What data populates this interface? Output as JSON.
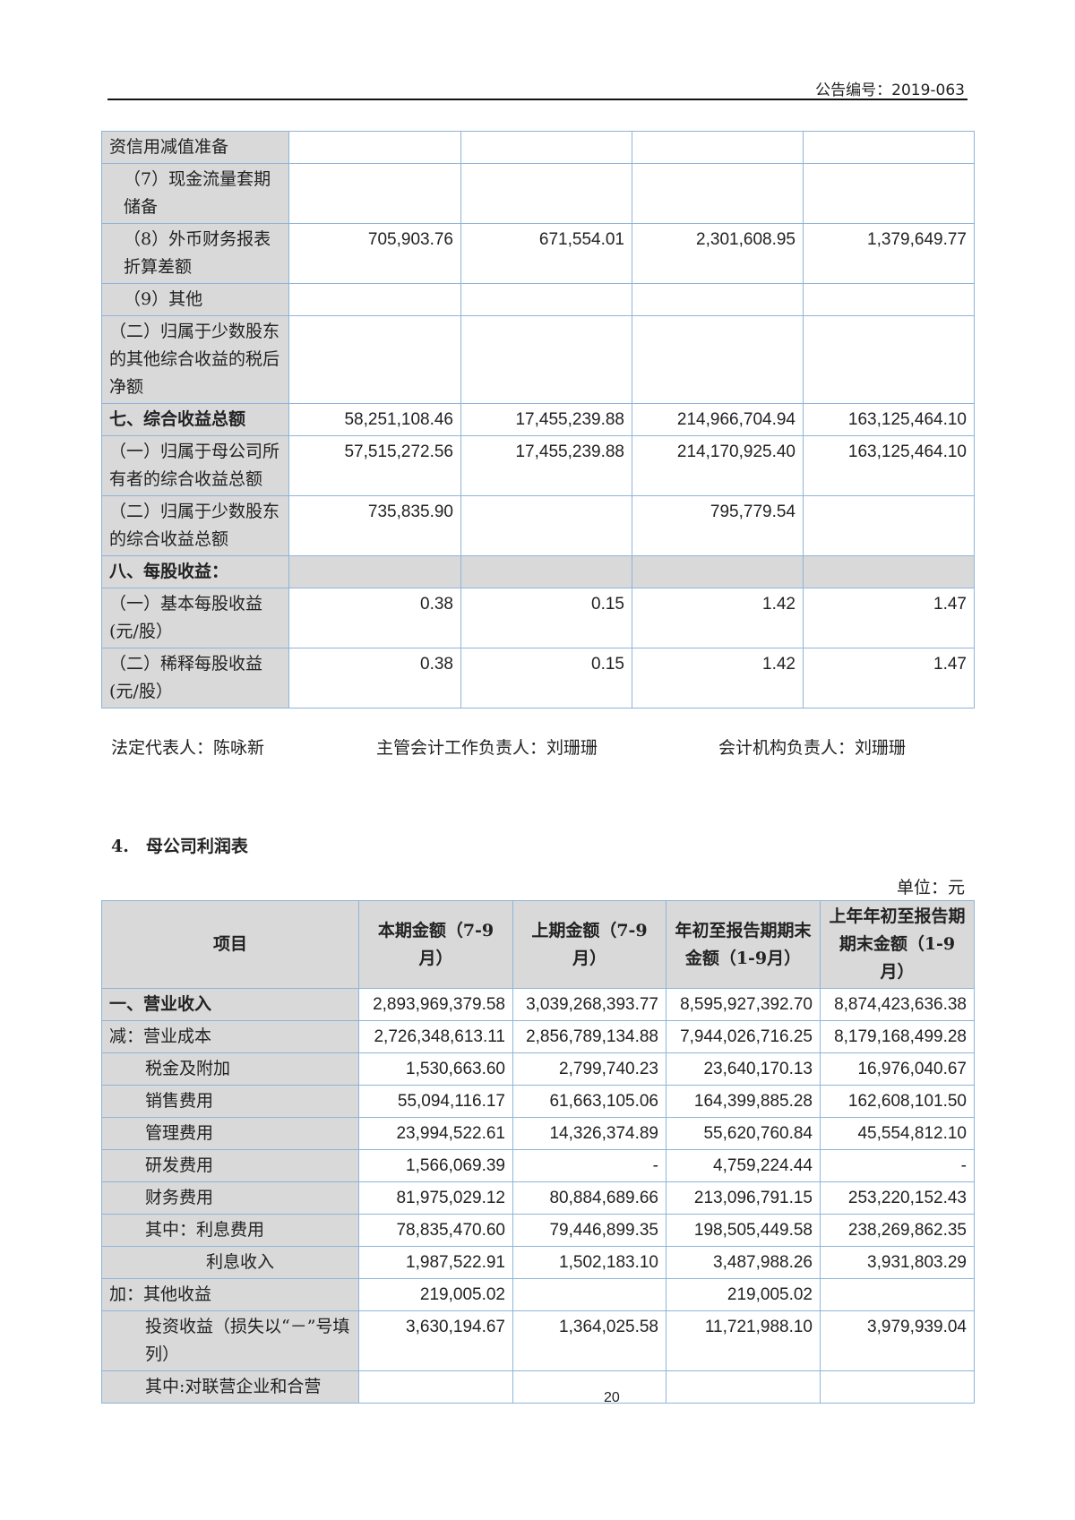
{
  "header": {
    "notice_no": "公告编号：2019-063"
  },
  "table1": {
    "rows": [
      {
        "label": "资信用减值准备",
        "vals": [
          "",
          "",
          "",
          ""
        ],
        "indent": 0
      },
      {
        "label": "（7）现金流量套期储备",
        "vals": [
          "",
          "",
          "",
          ""
        ],
        "indent": 1
      },
      {
        "label": "（8）外币财务报表折算差额",
        "vals": [
          "705,903.76",
          "671,554.01",
          "2,301,608.95",
          "1,379,649.77"
        ],
        "indent": 1
      },
      {
        "label": "（9）其他",
        "vals": [
          "",
          "",
          "",
          ""
        ],
        "indent": 1
      },
      {
        "label": "（二）归属于少数股东的其他综合收益的税后净额",
        "vals": [
          "",
          "",
          "",
          ""
        ],
        "indent": 0
      },
      {
        "label": "七、综合收益总额",
        "vals": [
          "58,251,108.46",
          "17,455,239.88",
          "214,966,704.94",
          "163,125,464.10"
        ],
        "bold": true
      },
      {
        "label": "（一）归属于母公司所有者的综合收益总额",
        "vals": [
          "57,515,272.56",
          "17,455,239.88",
          "214,170,925.40",
          "163,125,464.10"
        ]
      },
      {
        "label": "（二）归属于少数股东的综合收益总额",
        "vals": [
          "735,835.90",
          "",
          "795,779.54",
          ""
        ]
      },
      {
        "label": "八、每股收益：",
        "vals": [
          "",
          "",
          "",
          ""
        ],
        "bold": true,
        "gray": true
      },
      {
        "label": "（一）基本每股收益(元/股）",
        "vals": [
          "0.38",
          "0.15",
          "1.42",
          "1.47"
        ]
      },
      {
        "label": "（二）稀释每股收益(元/股）",
        "vals": [
          "0.38",
          "0.15",
          "1.42",
          "1.47"
        ]
      }
    ]
  },
  "signatures": {
    "legal_rep": "法定代表人：陈咏新",
    "accounting_head": "主管会计工作负责人：刘珊珊",
    "accounting_org_head": "会计机构负责人：刘珊珊"
  },
  "section_title": "4.　母公司利润表",
  "unit": "单位：元",
  "table2": {
    "headers": [
      "项目",
      "本期金额（7-9月）",
      "上期金额（7-9月）",
      "年初至报告期期末金额（1-9月）",
      "上年年初至报告期期末金额（1-9月）"
    ],
    "rows": [
      {
        "label": "一、营业收入",
        "vals": [
          "2,893,969,379.58",
          "3,039,268,393.77",
          "8,595,927,392.70",
          "8,874,423,636.38"
        ],
        "bold": true,
        "indent": 0
      },
      {
        "label": "减：营业成本",
        "vals": [
          "2,726,348,613.11",
          "2,856,789,134.88",
          "7,944,026,716.25",
          "8,179,168,499.28"
        ],
        "indent": 0
      },
      {
        "label": "税金及附加",
        "vals": [
          "1,530,663.60",
          "2,799,740.23",
          "23,640,170.13",
          "16,976,040.67"
        ],
        "indent": 2
      },
      {
        "label": "销售费用",
        "vals": [
          "55,094,116.17",
          "61,663,105.06",
          "164,399,885.28",
          "162,608,101.50"
        ],
        "indent": 2
      },
      {
        "label": "管理费用",
        "vals": [
          "23,994,522.61",
          "14,326,374.89",
          "55,620,760.84",
          "45,554,812.10"
        ],
        "indent": 2
      },
      {
        "label": "研发费用",
        "vals": [
          "1,566,069.39",
          "-",
          "4,759,224.44",
          "-"
        ],
        "indent": 2
      },
      {
        "label": "财务费用",
        "vals": [
          "81,975,029.12",
          "80,884,689.66",
          "213,096,791.15",
          "253,220,152.43"
        ],
        "indent": 2
      },
      {
        "label": "其中：利息费用",
        "vals": [
          "78,835,470.60",
          "79,446,899.35",
          "198,505,449.58",
          "238,269,862.35"
        ],
        "indent": 2
      },
      {
        "label": "利息收入",
        "vals": [
          "1,987,522.91",
          "1,502,183.10",
          "3,487,988.26",
          "3,931,803.29"
        ],
        "indent": 3
      },
      {
        "label": "加：其他收益",
        "vals": [
          "219,005.02",
          "",
          "219,005.02",
          ""
        ],
        "indent": 0
      },
      {
        "label": "投资收益（损失以“－”号填列）",
        "vals": [
          "3,630,194.67",
          "1,364,025.58",
          "11,721,988.10",
          "3,979,939.04"
        ],
        "indent": 2
      },
      {
        "label": "其中:对联营企业和合营",
        "vals": [
          "",
          "",
          "",
          ""
        ],
        "indent": 2
      }
    ]
  },
  "page_number": "20"
}
